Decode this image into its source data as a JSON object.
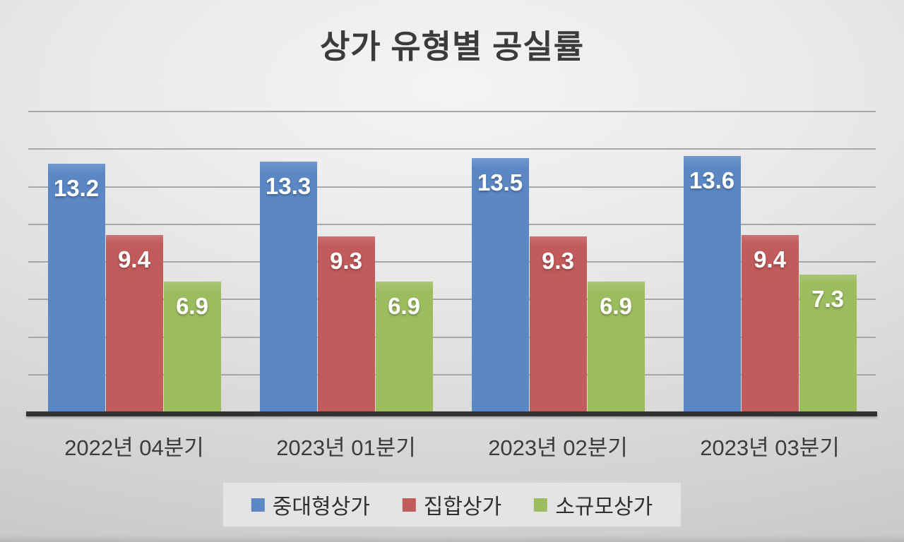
{
  "page": {
    "background_center": "#f4f4f4",
    "background_edge": "#c3c3c3",
    "axis_color": "#323232",
    "gridline_color": "#9e9e9e",
    "text_color": "#3b3b3b",
    "value_label_color": "#ffffff",
    "legend_background": "#e4e4e4"
  },
  "chart_data": {
    "type": "bar",
    "title": "상가 유형별 공실률",
    "categories": [
      "2022년 04분기",
      "2023년 01분기",
      "2023년 02분기",
      "2023년 03분기"
    ],
    "series": [
      {
        "name": "중대형상가",
        "color": "#5b88c5",
        "values": [
          13.2,
          13.3,
          13.5,
          13.6
        ]
      },
      {
        "name": "집합상가",
        "color": "#c25b5b",
        "values": [
          9.4,
          9.3,
          9.3,
          9.4
        ]
      },
      {
        "name": "소규모상가",
        "color": "#9cbd5f",
        "values": [
          6.9,
          6.9,
          6.9,
          7.3
        ]
      }
    ],
    "xlabel": "",
    "ylabel": "",
    "ylim": [
      0,
      16
    ],
    "gridline_step": 2,
    "grid": true,
    "y_tick_labels_visible": false,
    "value_labels_visible": true,
    "value_label_decimals": 1,
    "legend_position": "bottom"
  }
}
